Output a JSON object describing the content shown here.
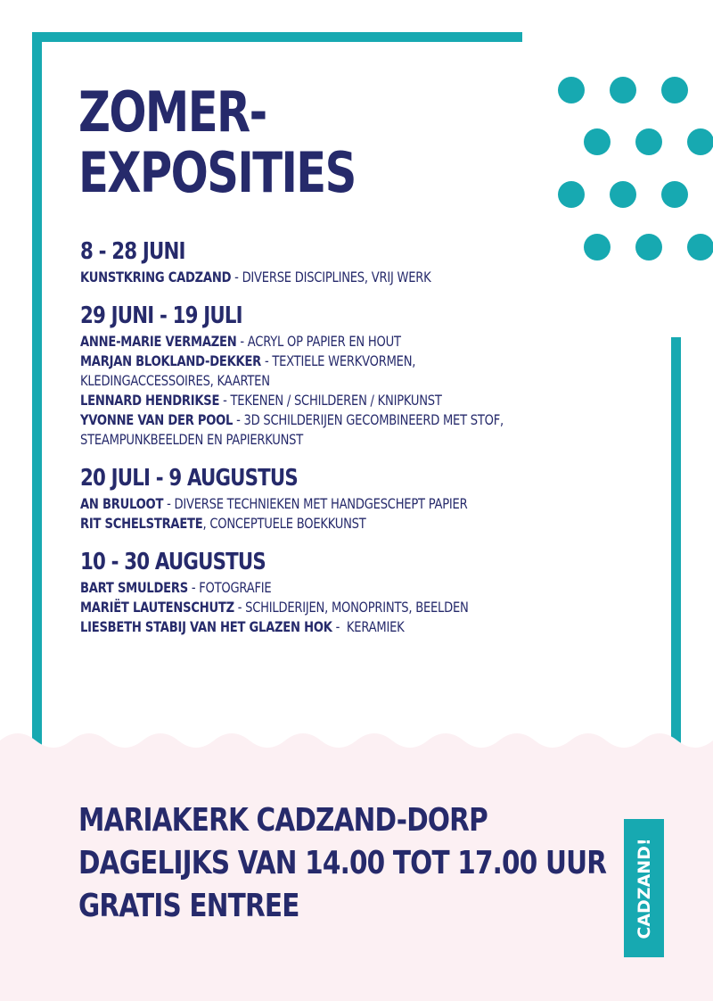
{
  "title": {
    "line1": "ZOMER-",
    "line2": "EXPOSITIES"
  },
  "sections": [
    {
      "date": "8 - 28 JUNI",
      "entries": [
        {
          "name": "KUNSTKRING CADZAND",
          "desc": " - DIVERSE DISCIPLINES, VRIJ WERK"
        }
      ]
    },
    {
      "date": "29 JUNI - 19 JULI",
      "entries": [
        {
          "name": "ANNE-MARIE VERMAZEN",
          "desc": " - ACRYL OP PAPIER EN HOUT"
        },
        {
          "name": "MARJAN BLOKLAND-DEKKER",
          "desc": " - TEXTIELE WERKVORMEN, KLEDINGACCESSOIRES, KAARTEN"
        },
        {
          "name": "LENNARD HENDRIKSE",
          "desc": " - TEKENEN / SCHILDEREN / KNIPKUNST"
        },
        {
          "name": "YVONNE VAN DER POOL",
          "desc": " - 3D SCHILDERIJEN GECOMBINEERD MET STOF, STEAMPUNKBEELDEN EN PAPIERKUNST"
        }
      ]
    },
    {
      "date": "20 JULI - 9 AUGUSTUS",
      "entries": [
        {
          "name": "AN BRULOOT",
          "desc": " - DIVERSE TECHNIEKEN MET HANDGESCHEPT PAPIER"
        },
        {
          "name": "RIT SCHELSTRAETE",
          "desc": ", CONCEPTUELE BOEKKUNST"
        }
      ]
    },
    {
      "date": "10 - 30 AUGUSTUS",
      "entries": [
        {
          "name": "BART SMULDERS",
          "desc": " - FOTOGRAFIE"
        },
        {
          "name": "MARIËT LAUTENSCHUTZ",
          "desc": " - SCHILDERIJEN, MONOPRINTS, BEELDEN"
        },
        {
          "name": "LIESBETH STABIJ VAN HET GLAZEN HOK",
          "desc": " -  KERAMIEK"
        }
      ]
    }
  ],
  "footer": {
    "line1": "MARIAKERK CADZAND-DORP",
    "line2": "DAGELIJKS VAN 14.00 TOT 17.00 UUR",
    "line3": "GRATIS ENTREE"
  },
  "badge": {
    "text": "CADZAND!"
  },
  "colors": {
    "navy": "#262a6b",
    "teal": "#17a9b1",
    "pink": "#fcf0f3"
  }
}
